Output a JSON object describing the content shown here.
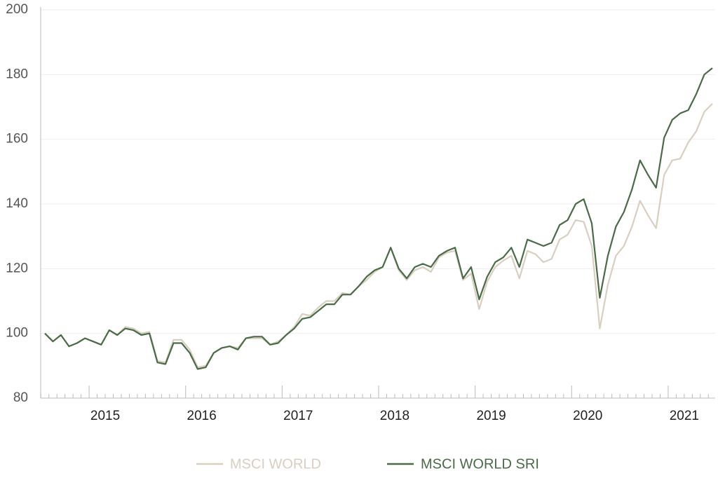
{
  "chart_data": {
    "type": "line",
    "categories": [
      null,
      null,
      null,
      null,
      null,
      null,
      "2015",
      null,
      null,
      null,
      null,
      null,
      null,
      null,
      null,
      null,
      null,
      null,
      "2016",
      null,
      null,
      null,
      null,
      null,
      null,
      null,
      null,
      null,
      null,
      null,
      "2017",
      null,
      null,
      null,
      null,
      null,
      null,
      null,
      null,
      null,
      null,
      null,
      "2018",
      null,
      null,
      null,
      null,
      null,
      null,
      null,
      null,
      null,
      null,
      null,
      "2019",
      null,
      null,
      null,
      null,
      null,
      null,
      null,
      null,
      null,
      null,
      null,
      "2020",
      null,
      null,
      null,
      null,
      null,
      null,
      null,
      null,
      null,
      null,
      null,
      "2021",
      null,
      null,
      null,
      null,
      null
    ],
    "series": [
      {
        "name": "MSCI WORLD",
        "color": "#d9cfc1",
        "values": [
          100,
          97.5,
          99.5,
          96,
          97,
          98.5,
          97.5,
          96.5,
          101,
          99.5,
          102,
          101.5,
          100,
          100.5,
          91.5,
          91,
          98,
          98,
          95,
          89.5,
          90,
          94,
          95.5,
          96,
          95.5,
          98.5,
          98.5,
          98.5,
          96.5,
          97.5,
          99.5,
          102,
          106,
          105.5,
          108,
          110,
          110,
          112.5,
          112,
          114.5,
          116.5,
          119,
          120.5,
          126.5,
          119.5,
          116.5,
          119.5,
          120.5,
          119,
          123.5,
          125,
          125.5,
          116.5,
          118.5,
          107.5,
          116,
          120.5,
          122.5,
          124,
          117,
          125.5,
          124.5,
          122,
          123,
          129,
          130.5,
          135,
          134.5,
          127,
          101.5,
          115,
          124,
          127,
          133,
          141,
          136.5,
          132.5,
          149,
          153.5,
          154,
          159,
          162.5,
          168.5,
          171
        ]
      },
      {
        "name": "MSCI WORLD SRI",
        "color": "#4a6b47",
        "values": [
          100,
          97.5,
          99.5,
          96,
          97,
          98.5,
          97.5,
          96.5,
          101,
          99.5,
          101.5,
          101,
          99.5,
          100,
          91,
          90.5,
          97,
          97,
          94,
          89,
          89.5,
          94,
          95.5,
          96,
          95,
          98.5,
          99,
          99,
          96.5,
          97,
          99.5,
          101.5,
          104.5,
          105,
          107,
          109,
          109,
          112,
          112,
          114.5,
          117.5,
          119.5,
          120.5,
          126.5,
          120,
          117,
          120.5,
          121.5,
          120.5,
          124,
          125.5,
          126.5,
          117,
          120.5,
          110.5,
          117.5,
          122,
          123.5,
          126.5,
          120.5,
          129,
          128,
          127,
          128,
          133.5,
          135,
          140,
          141.5,
          134,
          111,
          124,
          133,
          137.5,
          144.5,
          153.5,
          149,
          145,
          160.5,
          166,
          168,
          169,
          174,
          180,
          182
        ]
      }
    ],
    "ylim": [
      80,
      200
    ],
    "yticks": [
      80,
      100,
      120,
      140,
      160,
      180,
      200
    ],
    "grid": true,
    "legend": "bottom"
  }
}
